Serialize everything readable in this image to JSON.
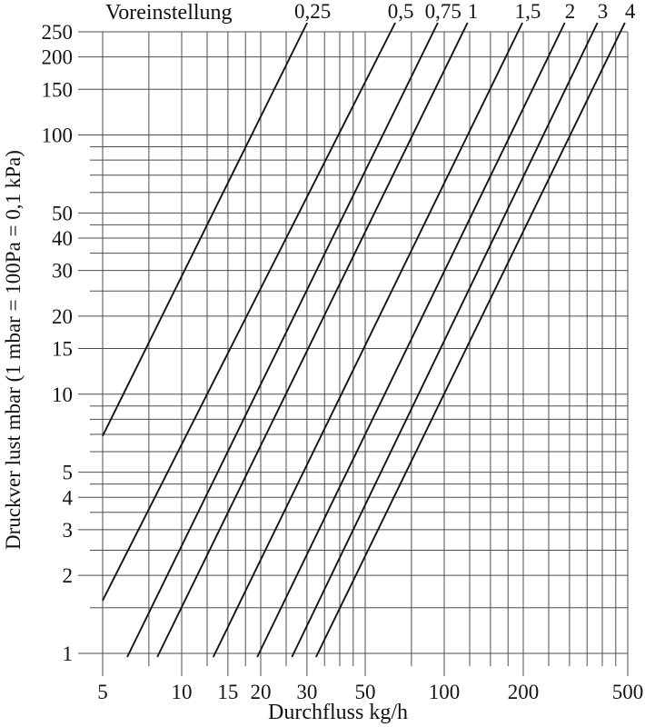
{
  "figure": {
    "preset_title": "Voreinstellung",
    "x_axis_title": "Durchfluss kg/h",
    "y_axis_title": "Druckver lust mbar (1 mbar = 100Pa = 0,1 kPa)"
  },
  "colors": {
    "background": "#ffffff",
    "grid": "#4d4d4d",
    "curve": "#141414",
    "text": "#141414"
  },
  "chart_data": {
    "type": "line",
    "title": "Voreinstellung",
    "xlabel": "Durchfluss kg/h",
    "ylabel": "Druckver lust mbar (1 mbar = 100Pa = 0,1 kPa)",
    "x_scale": "log",
    "y_scale": "log",
    "xlim": [
      5,
      500
    ],
    "ylim": [
      1,
      250
    ],
    "grid": true,
    "legend_position": "labels-above-top-axis",
    "x_major_ticks": [
      5,
      10,
      15,
      20,
      30,
      50,
      100,
      200,
      500
    ],
    "x_minor_gridlines": [
      7.5,
      12.5,
      17.5,
      25,
      35,
      40,
      45,
      75,
      125,
      150,
      175,
      250,
      300,
      350,
      400,
      450
    ],
    "y_major_ticks": [
      1,
      2,
      3,
      4,
      5,
      10,
      15,
      20,
      30,
      40,
      50,
      100,
      150,
      200,
      250
    ],
    "y_minor_gridlines": [
      1.5,
      2.5,
      3.5,
      4.5,
      6,
      7,
      8,
      9,
      25,
      35,
      45,
      60,
      70,
      80,
      90
    ],
    "series_note": "Each preset curve is a straight line in log-log space (dp ~ Q^2); points are [flow kg/h, pressure loss mbar] at its two visible endpoints",
    "series": [
      {
        "name": "0,25",
        "points": [
          [
            5,
            6.9
          ],
          [
            28.9,
            250
          ]
        ]
      },
      {
        "name": "0,5",
        "points": [
          [
            5,
            1.6
          ],
          [
            62.5,
            250
          ]
        ]
      },
      {
        "name": "0,75",
        "points": [
          [
            6.3,
            1
          ],
          [
            90.9,
            250
          ]
        ]
      },
      {
        "name": "1",
        "points": [
          [
            8.2,
            1
          ],
          [
            118,
            250
          ]
        ]
      },
      {
        "name": "1,5",
        "points": [
          [
            13.4,
            1
          ],
          [
            191,
            250
          ]
        ]
      },
      {
        "name": "2",
        "points": [
          [
            19.7,
            1
          ],
          [
            277,
            250
          ]
        ]
      },
      {
        "name": "3",
        "points": [
          [
            26.7,
            1
          ],
          [
            369,
            250
          ]
        ]
      },
      {
        "name": "4",
        "points": [
          [
            33,
            1
          ],
          [
            469,
            250
          ]
        ]
      }
    ]
  }
}
